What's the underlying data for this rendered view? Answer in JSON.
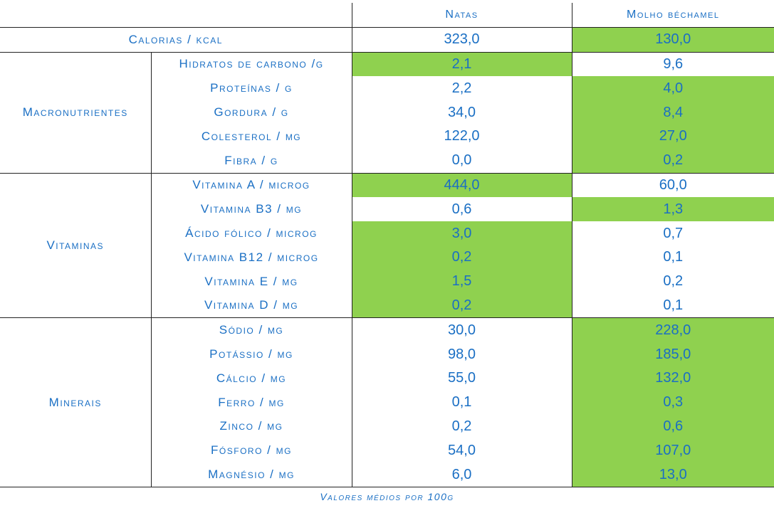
{
  "columns": [
    "Natas",
    "Molho béchamel"
  ],
  "calorias": {
    "label": "Calorias / kcal",
    "values": [
      "323,0",
      "130,0"
    ],
    "hi": 1
  },
  "groups": [
    {
      "name": "Macronutrientes",
      "rows": [
        {
          "label": "Hidratos de carbono /g",
          "values": [
            "2,1",
            "9,6"
          ],
          "hi": 0
        },
        {
          "label": "Proteínas / g",
          "values": [
            "2,2",
            "4,0"
          ],
          "hi": 1
        },
        {
          "label": "Gordura / g",
          "values": [
            "34,0",
            "8,4"
          ],
          "hi": 1
        },
        {
          "label": "Colesterol / mg",
          "values": [
            "122,0",
            "27,0"
          ],
          "hi": 1
        },
        {
          "label": "Fibra / g",
          "values": [
            "0,0",
            "0,2"
          ],
          "hi": 1
        }
      ]
    },
    {
      "name": "Vitaminas",
      "rows": [
        {
          "label": "Vitamina A / microg",
          "values": [
            "444,0",
            "60,0"
          ],
          "hi": 0
        },
        {
          "label": "Vitamina B3 / mg",
          "values": [
            "0,6",
            "1,3"
          ],
          "hi": 1
        },
        {
          "label": "Ácido fólico / microg",
          "values": [
            "3,0",
            "0,7"
          ],
          "hi": 0
        },
        {
          "label": "Vitamina B12 / microg",
          "values": [
            "0,2",
            "0,1"
          ],
          "hi": 0
        },
        {
          "label": "Vitamina E / mg",
          "values": [
            "1,5",
            "0,2"
          ],
          "hi": 0
        },
        {
          "label": "Vitamina D / mg",
          "values": [
            "0,2",
            "0,1"
          ],
          "hi": 0
        }
      ]
    },
    {
      "name": "Minerais",
      "rows": [
        {
          "label": "Sódio / mg",
          "values": [
            "30,0",
            "228,0"
          ],
          "hi": 1
        },
        {
          "label": "Potássio / mg",
          "values": [
            "98,0",
            "185,0"
          ],
          "hi": 1
        },
        {
          "label": "Cálcio / mg",
          "values": [
            "55,0",
            "132,0"
          ],
          "hi": 1
        },
        {
          "label": "Ferro / mg",
          "values": [
            "0,1",
            "0,3"
          ],
          "hi": 1
        },
        {
          "label": "Zinco / mg",
          "values": [
            "0,2",
            "0,6"
          ],
          "hi": 1
        },
        {
          "label": "Fósforo / mg",
          "values": [
            "54,0",
            "107,0"
          ],
          "hi": 1
        },
        {
          "label": "Magnésio / mg",
          "values": [
            "6,0",
            "13,0"
          ],
          "hi": 1
        }
      ]
    }
  ],
  "footnote": "Valores médios por 100g",
  "colors": {
    "text": "#1a6fc4",
    "highlight": "#8fd14f",
    "lines": "#222222"
  }
}
